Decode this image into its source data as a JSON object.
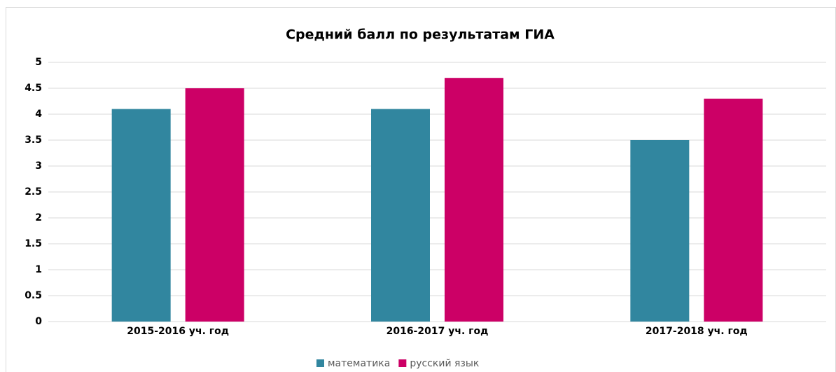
{
  "chart_data": {
    "type": "bar",
    "title": "Средний балл по результатам ГИА",
    "categories": [
      "2015-2016 уч. год",
      "2016-2017 уч. год",
      "2017-2018 уч. год"
    ],
    "series": [
      {
        "name": "математика",
        "color": "#31869f",
        "values": [
          4.1,
          4.1,
          3.5
        ]
      },
      {
        "name": "русский язык",
        "color": "#cc0066",
        "values": [
          4.5,
          4.7,
          4.3
        ]
      }
    ],
    "ylim": [
      0,
      5
    ],
    "yticks": [
      0,
      0.5,
      1,
      1.5,
      2,
      2.5,
      3,
      3.5,
      4,
      4.5,
      5
    ],
    "grid": true,
    "legend": "bottom"
  }
}
